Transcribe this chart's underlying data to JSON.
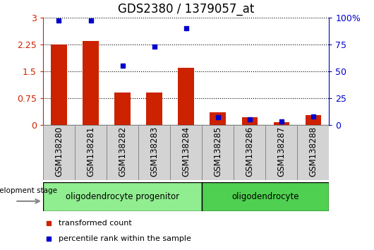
{
  "title": "GDS2380 / 1379057_at",
  "samples": [
    "GSM138280",
    "GSM138281",
    "GSM138282",
    "GSM138283",
    "GSM138284",
    "GSM138285",
    "GSM138286",
    "GSM138287",
    "GSM138288"
  ],
  "red_values": [
    2.25,
    2.35,
    0.9,
    0.9,
    1.6,
    0.35,
    0.22,
    0.08,
    0.28
  ],
  "blue_values": [
    97,
    97,
    55,
    73,
    90,
    7,
    5,
    3,
    8
  ],
  "ylim_left": [
    0,
    3
  ],
  "ylim_right": [
    0,
    100
  ],
  "yticks_left": [
    0,
    0.75,
    1.5,
    2.25,
    3.0
  ],
  "yticks_right": [
    0,
    25,
    50,
    75,
    100
  ],
  "ytick_labels_left": [
    "0",
    "0.75",
    "1.5",
    "2.25",
    "3"
  ],
  "ytick_labels_right": [
    "0",
    "25",
    "50",
    "75",
    "100%"
  ],
  "red_color": "#cc2200",
  "blue_color": "#0000cc",
  "marker_size": 5,
  "group1_label": "oligodendrocyte progenitor",
  "group2_label": "oligodendrocyte",
  "group1_count": 5,
  "group2_count": 4,
  "dev_stage_label": "development stage",
  "legend1": "transformed count",
  "legend2": "percentile rank within the sample",
  "group1_color": "#90ee90",
  "group2_color": "#50d050",
  "tick_bg_color": "#d3d3d3",
  "title_fontsize": 12,
  "axis_label_fontsize": 9,
  "tick_label_fontsize": 8.5,
  "dotted_grid_color": "#000000",
  "bar_width": 0.5
}
